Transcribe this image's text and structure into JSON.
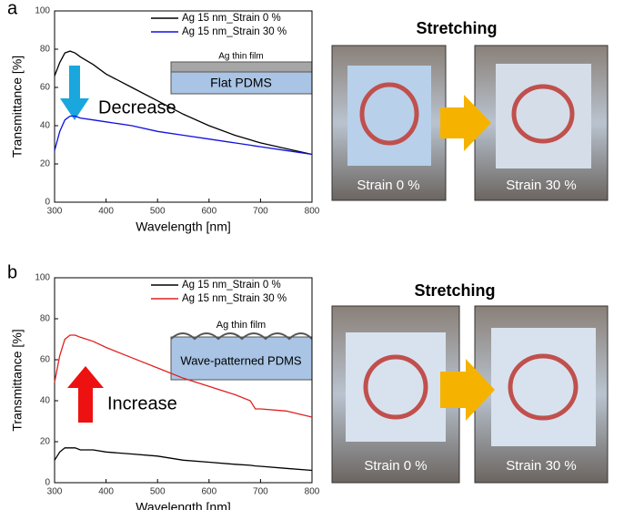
{
  "chart_data": [
    {
      "type": "line",
      "panel_label": "a",
      "xlabel": "Wavelength [nm]",
      "ylabel": "Transmittance [%]",
      "x": [
        300,
        310,
        320,
        330,
        340,
        350,
        375,
        400,
        450,
        500,
        550,
        600,
        650,
        680,
        690,
        700,
        750,
        800
      ],
      "series": [
        {
          "name": "Ag 15 nm_Strain 0 %",
          "color": "#000000",
          "values": [
            66,
            73,
            78,
            79,
            78,
            76,
            72,
            67,
            60,
            53,
            46,
            40,
            35,
            32.6,
            31.8,
            31,
            28,
            25
          ]
        },
        {
          "name": "Ag 15 nm_Strain 30 %",
          "color": "#1010e0",
          "values": [
            27,
            37,
            43,
            45,
            45,
            44,
            43,
            42,
            40,
            37,
            35,
            33,
            31,
            29.8,
            29.4,
            29,
            27,
            25
          ]
        }
      ],
      "xlim": [
        300,
        800
      ],
      "xticks": [
        300,
        400,
        500,
        600,
        700,
        800
      ],
      "ylim": [
        0,
        100
      ],
      "yticks": [
        0,
        20,
        40,
        60,
        80,
        100
      ],
      "annotations": {
        "film_label": "Ag thin film",
        "substrate_label": "Flat PDMS",
        "trend_label": "Decrease"
      },
      "photos": {
        "title": "Stretching",
        "captions": [
          "Strain 0 %",
          "Strain 30 %"
        ]
      }
    },
    {
      "type": "line",
      "panel_label": "b",
      "xlabel": "Wavelength [nm]",
      "ylabel": "Transmittance [%]",
      "x": [
        300,
        310,
        320,
        330,
        340,
        350,
        375,
        400,
        450,
        500,
        550,
        600,
        650,
        680,
        690,
        700,
        750,
        800
      ],
      "series": [
        {
          "name": "Ag 15 nm_Strain 0 %",
          "color": "#000000",
          "values": [
            11,
            15,
            17,
            17,
            17,
            16,
            16,
            15,
            14,
            13,
            11,
            10,
            9,
            8.5,
            8.2,
            8,
            7,
            6
          ]
        },
        {
          "name": "Ag 15 nm_Strain 30 %",
          "color": "#e02020",
          "values": [
            49,
            62,
            70,
            72,
            72,
            71,
            69,
            66,
            61,
            56,
            51,
            47,
            43,
            40,
            36,
            36,
            35,
            32
          ]
        }
      ],
      "xlim": [
        300,
        800
      ],
      "xticks": [
        300,
        400,
        500,
        600,
        700,
        800
      ],
      "ylim": [
        0,
        100
      ],
      "yticks": [
        0,
        20,
        40,
        60,
        80,
        100
      ],
      "annotations": {
        "film_label": "Ag thin film",
        "substrate_label": "Wave-patterned PDMS",
        "trend_label": "Increase"
      },
      "photos": {
        "title": "Stretching",
        "captions": [
          "Strain 0 %",
          "Strain 30 %"
        ]
      }
    }
  ]
}
